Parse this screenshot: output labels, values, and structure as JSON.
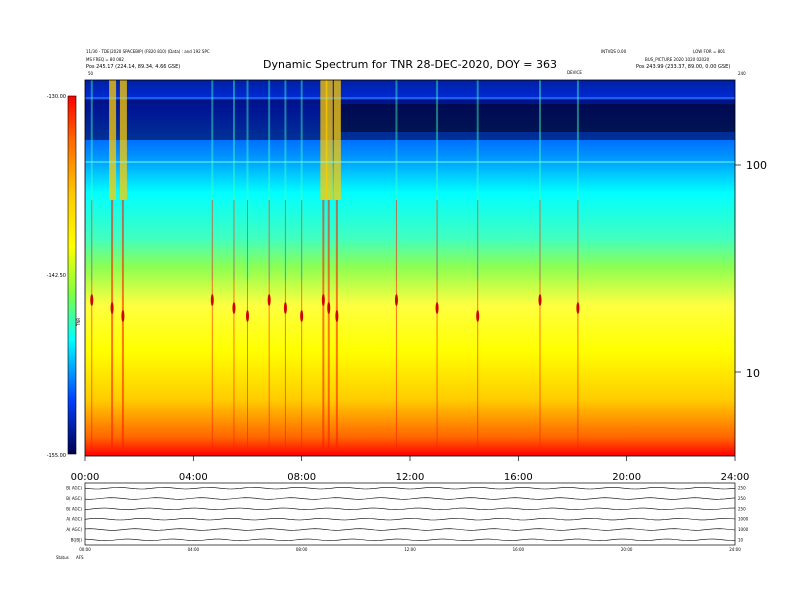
{
  "header": {
    "left_line1": "11/30 - TDE(2020 SPACEBIP) (F820 810) (Data) : and 192 SPC",
    "left_line2": "MS FREQ = 80 082",
    "left_line3": "Pos    245.17 (224.14, 89.34, 4.66 GSE)",
    "right_line1": "INTVDS 0.00",
    "right_line2": "LOW FOR = 801",
    "right_line3": "BUS_PICTURE 2020 1020 02020",
    "right_line4": "Pos    243.99 (233.37, 89.00, 0.00 GSE)"
  },
  "chart_data": [
    {
      "type": "heatmap",
      "title": "Dynamic Spectrum for TNR 28-DEC-2020, DOY = 363",
      "xlabel": "",
      "ylabel": "",
      "x_ticks": [
        "00:00",
        "04:00",
        "08:00",
        "12:00",
        "16:00",
        "20:00",
        "24:00"
      ],
      "x_range_hours": [
        0,
        24
      ],
      "y_scale": "log",
      "y_ticks": [
        "100",
        "10"
      ],
      "y_range": [
        4,
        240
      ],
      "y_top_label": "240",
      "y_top_left_marker": "50",
      "mid_top_marker": "DEVICE",
      "colorbar": {
        "label": "TNR",
        "tick_labels": [
          "-130.00",
          "-142.50",
          "-155.00"
        ],
        "range": [
          -155,
          -130
        ],
        "colors": [
          "#000080",
          "#0000ff",
          "#00ffff",
          "#ffff00",
          "#ff8000",
          "#ff0000",
          "#8b0000"
        ]
      },
      "bursts_hours": [
        0.25,
        1.0,
        1.4,
        4.7,
        5.5,
        6.0,
        6.8,
        7.4,
        8.0,
        8.8,
        9.0,
        9.3,
        11.5,
        13.0,
        14.5,
        16.8,
        18.2
      ]
    },
    {
      "type": "line",
      "title": "",
      "panels": [
        {
          "label": "B( AGC)",
          "ylabel_right": "250"
        },
        {
          "label": "B( AGC)",
          "ylabel_right": "250"
        },
        {
          "label": "B( AGC)",
          "ylabel_right": "250"
        },
        {
          "label": "A( AGC)",
          "ylabel_right": "1000"
        },
        {
          "label": "A( AGC)",
          "ylabel_right": "1000"
        },
        {
          "label": "B(|B|)",
          "ylabel_right": "10"
        }
      ],
      "x_ticks": [
        "00:00",
        "04:00",
        "08:00",
        "12:00",
        "16:00",
        "20:00",
        "24:00"
      ],
      "footer_label": "Status",
      "footer_value": "AFS"
    }
  ],
  "colors": {
    "background": "#ffffff",
    "axis": "#000000"
  }
}
